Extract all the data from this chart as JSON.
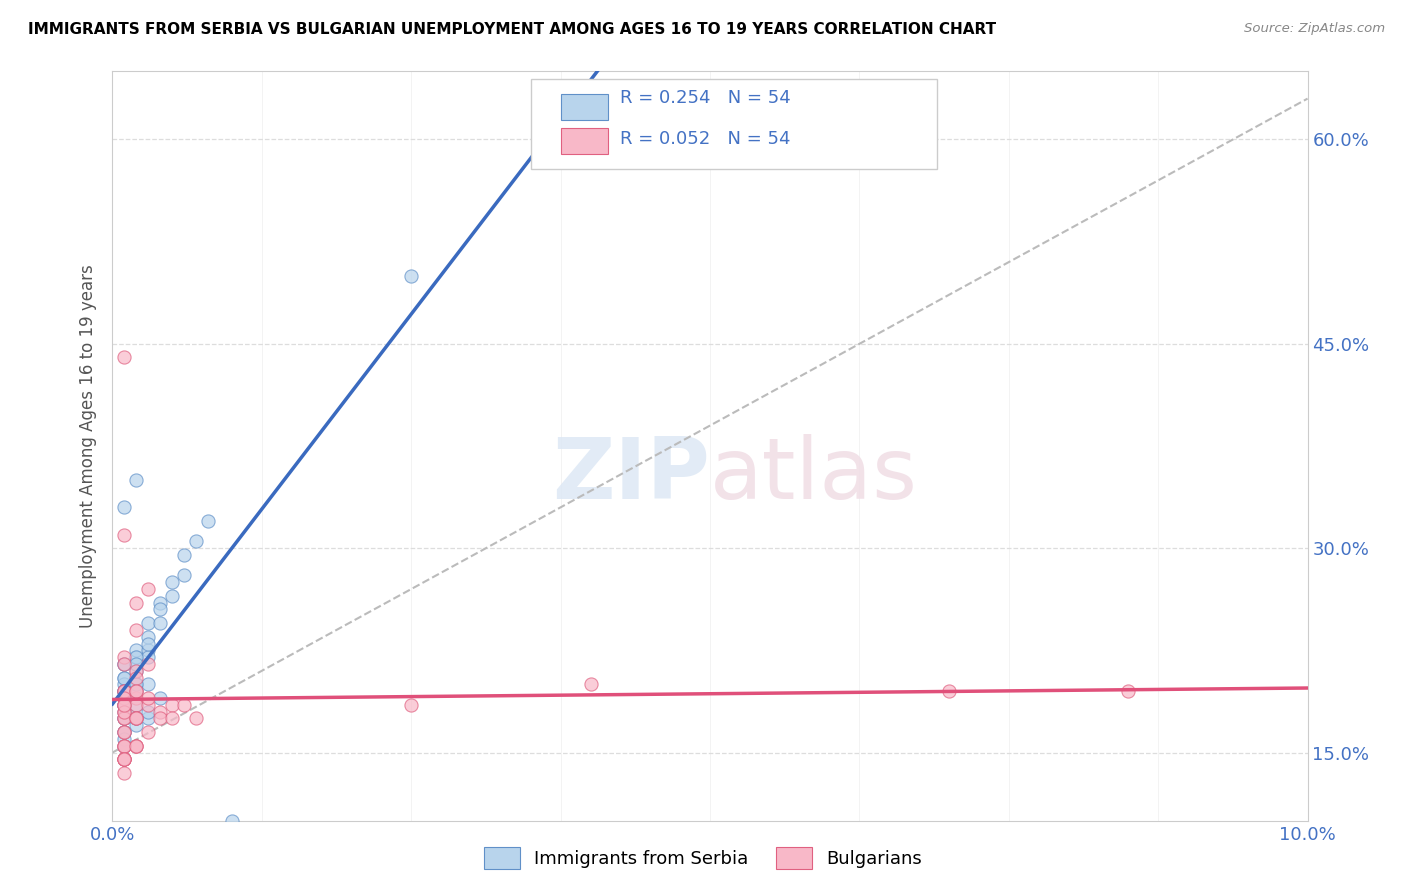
{
  "title": "IMMIGRANTS FROM SERBIA VS BULGARIAN UNEMPLOYMENT AMONG AGES 16 TO 19 YEARS CORRELATION CHART",
  "source": "Source: ZipAtlas.com",
  "ylabel": "Unemployment Among Ages 16 to 19 years",
  "y_tick_labels_right": [
    "15.0%",
    "30.0%",
    "45.0%",
    "60.0%"
  ],
  "legend_series": [
    {
      "label": "Immigrants from Serbia",
      "R": 0.254,
      "N": 54,
      "color": "#b8d4ec",
      "edge": "#6090c8"
    },
    {
      "label": "Bulgarians",
      "R": 0.052,
      "N": 54,
      "color": "#f8b8c8",
      "edge": "#e06080"
    }
  ],
  "watermark": "ZIPAtlas",
  "blue_scatter_x": [
    0.001,
    0.001,
    0.001,
    0.001,
    0.001,
    0.002,
    0.002,
    0.002,
    0.002,
    0.003,
    0.003,
    0.003,
    0.003,
    0.004,
    0.004,
    0.004,
    0.005,
    0.005,
    0.006,
    0.006,
    0.007,
    0.008,
    0.001,
    0.002,
    0.001,
    0.001,
    0.002,
    0.003,
    0.002,
    0.001,
    0.001,
    0.002,
    0.003,
    0.001,
    0.002,
    0.001,
    0.002,
    0.001,
    0.001,
    0.001,
    0.003,
    0.002,
    0.001,
    0.002,
    0.001,
    0.001,
    0.001,
    0.001,
    0.003,
    0.004,
    0.002,
    0.001,
    0.025,
    0.01
  ],
  "blue_scatter_y": [
    0.195,
    0.205,
    0.215,
    0.185,
    0.2,
    0.215,
    0.22,
    0.225,
    0.2,
    0.225,
    0.235,
    0.245,
    0.22,
    0.245,
    0.26,
    0.255,
    0.265,
    0.275,
    0.28,
    0.295,
    0.305,
    0.32,
    0.33,
    0.35,
    0.195,
    0.19,
    0.21,
    0.2,
    0.22,
    0.215,
    0.185,
    0.195,
    0.23,
    0.205,
    0.215,
    0.19,
    0.2,
    0.195,
    0.185,
    0.175,
    0.175,
    0.185,
    0.165,
    0.17,
    0.155,
    0.175,
    0.165,
    0.16,
    0.18,
    0.19,
    0.175,
    0.18,
    0.5,
    0.1
  ],
  "pink_scatter_x": [
    0.001,
    0.001,
    0.001,
    0.001,
    0.002,
    0.002,
    0.002,
    0.003,
    0.003,
    0.004,
    0.004,
    0.005,
    0.005,
    0.006,
    0.007,
    0.001,
    0.001,
    0.002,
    0.001,
    0.001,
    0.002,
    0.002,
    0.003,
    0.001,
    0.001,
    0.001,
    0.002,
    0.001,
    0.001,
    0.002,
    0.003,
    0.002,
    0.001,
    0.002,
    0.001,
    0.001,
    0.002,
    0.003,
    0.002,
    0.001,
    0.001,
    0.001,
    0.001,
    0.002,
    0.001,
    0.001,
    0.001,
    0.001,
    0.002,
    0.001,
    0.085,
    0.04,
    0.025,
    0.07
  ],
  "pink_scatter_y": [
    0.195,
    0.18,
    0.185,
    0.175,
    0.19,
    0.185,
    0.175,
    0.185,
    0.19,
    0.18,
    0.175,
    0.185,
    0.175,
    0.185,
    0.175,
    0.22,
    0.215,
    0.21,
    0.44,
    0.31,
    0.26,
    0.24,
    0.27,
    0.195,
    0.19,
    0.185,
    0.195,
    0.175,
    0.18,
    0.205,
    0.215,
    0.195,
    0.185,
    0.175,
    0.165,
    0.155,
    0.155,
    0.165,
    0.175,
    0.155,
    0.145,
    0.165,
    0.145,
    0.155,
    0.145,
    0.155,
    0.145,
    0.135,
    0.155,
    0.145,
    0.195,
    0.2,
    0.185,
    0.195
  ],
  "blue_line_color": "#3a6abf",
  "pink_line_color": "#e0507a",
  "dashed_line_color": "#bbbbbb",
  "scatter_alpha": 0.7,
  "scatter_size": 90,
  "fig_width": 14.06,
  "fig_height": 8.92,
  "xlim": [
    0.0,
    0.1
  ],
  "ylim": [
    0.1,
    0.65
  ],
  "y_ticks": [
    0.15,
    0.3,
    0.45,
    0.6
  ],
  "x_ticks": [
    0.0,
    0.1
  ]
}
